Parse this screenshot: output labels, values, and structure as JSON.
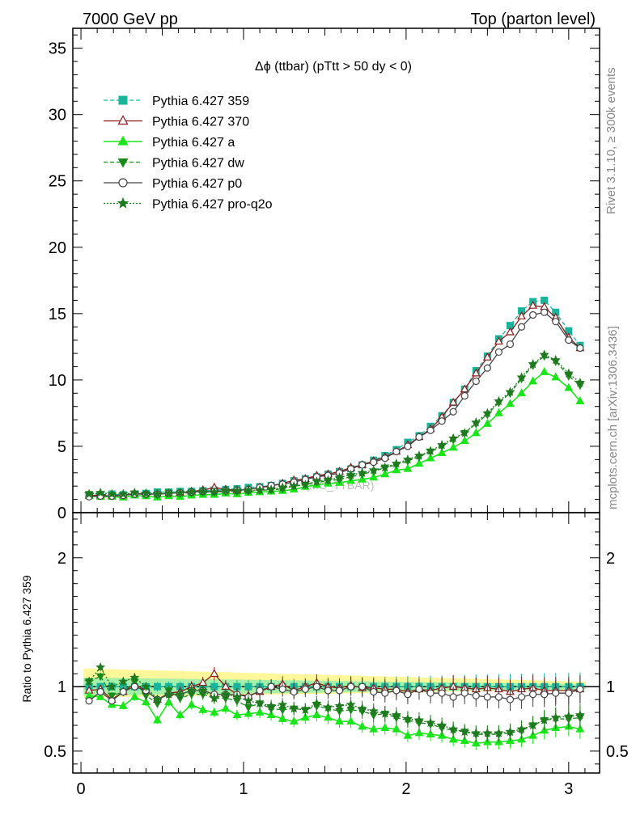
{
  "header": {
    "left": "7000 GeV pp",
    "right": "Top (parton level)"
  },
  "side": {
    "rivet": "Rivet 3.1.10, ≥ 300k events",
    "mcplots": "mcplots.cern.ch [arXiv:1306.3436]"
  },
  "title": "Δϕ (ttbar) (pTtt > 50 dy < 0)",
  "ratio_ylabel": "Ratio to Pythia 6.427 359",
  "watermark": "(MC_TTBAR)",
  "colors": {
    "s359": "#19b49a",
    "s370": "#8b1a1a",
    "a": "#19e619",
    "dw": "#1a8a1a",
    "p0": "#444444",
    "proq2o": "#1f7a1f"
  },
  "legend": [
    {
      "key": "s359",
      "label": "Pythia 6.427 359"
    },
    {
      "key": "s370",
      "label": "Pythia 6.427 370"
    },
    {
      "key": "a",
      "label": "Pythia 6.427 a"
    },
    {
      "key": "dw",
      "label": "Pythia 6.427 dw"
    },
    {
      "key": "p0",
      "label": "Pythia 6.427 p0"
    },
    {
      "key": "proq2o",
      "label": "Pythia 6.427 pro-q2o"
    }
  ],
  "chart_data": [
    {
      "type": "line",
      "panel": "main",
      "xlim": [
        -0.05,
        3.19
      ],
      "ylim": [
        0,
        36.5
      ],
      "yticks": [
        0,
        5,
        10,
        15,
        20,
        25,
        30,
        35
      ],
      "xticks": [
        0,
        1,
        2,
        3
      ],
      "x": [
        0.05,
        0.12,
        0.19,
        0.26,
        0.33,
        0.4,
        0.47,
        0.54,
        0.61,
        0.68,
        0.75,
        0.82,
        0.89,
        0.96,
        1.03,
        1.1,
        1.17,
        1.24,
        1.31,
        1.38,
        1.45,
        1.52,
        1.59,
        1.66,
        1.73,
        1.8,
        1.87,
        1.94,
        2.01,
        2.08,
        2.15,
        2.22,
        2.29,
        2.36,
        2.43,
        2.5,
        2.57,
        2.64,
        2.71,
        2.78,
        2.85,
        2.92,
        3.0,
        3.07
      ],
      "series": [
        {
          "name": "Pythia 6.427 359",
          "key": "s359",
          "values": [
            1.35,
            1.3,
            1.4,
            1.35,
            1.4,
            1.45,
            1.55,
            1.55,
            1.6,
            1.6,
            1.65,
            1.7,
            1.75,
            1.8,
            1.9,
            1.95,
            2.05,
            2.2,
            2.4,
            2.55,
            2.7,
            2.9,
            3.1,
            3.3,
            3.6,
            3.95,
            4.3,
            4.75,
            5.3,
            5.8,
            6.5,
            7.3,
            8.3,
            9.3,
            10.7,
            11.8,
            13.1,
            14.1,
            15.2,
            15.9,
            16.0,
            15.1,
            13.7,
            12.6
          ]
        },
        {
          "name": "Pythia 6.427 370",
          "key": "s370",
          "values": [
            1.3,
            1.3,
            1.25,
            1.3,
            1.45,
            1.4,
            1.4,
            1.45,
            1.5,
            1.6,
            1.7,
            1.9,
            1.75,
            1.7,
            1.75,
            1.9,
            2.0,
            2.2,
            2.45,
            2.55,
            2.8,
            2.9,
            3.1,
            3.4,
            3.6,
            3.9,
            4.2,
            4.6,
            5.1,
            5.7,
            6.3,
            7.2,
            8.3,
            9.3,
            10.5,
            11.7,
            12.9,
            13.6,
            14.8,
            15.6,
            15.5,
            14.7,
            13.2,
            12.4
          ]
        },
        {
          "name": "Pythia 6.427 a",
          "key": "a",
          "values": [
            1.25,
            1.2,
            1.2,
            1.15,
            1.3,
            1.25,
            1.15,
            1.25,
            1.2,
            1.3,
            1.35,
            1.35,
            1.45,
            1.4,
            1.5,
            1.55,
            1.6,
            1.65,
            1.75,
            1.95,
            2.1,
            2.2,
            2.25,
            2.4,
            2.5,
            2.65,
            2.9,
            3.2,
            3.3,
            3.7,
            4.1,
            4.5,
            4.9,
            5.4,
            6.0,
            6.7,
            7.5,
            8.2,
            9.0,
            9.9,
            10.6,
            10.2,
            9.4,
            8.4
          ]
        },
        {
          "name": "Pythia 6.427 dw",
          "key": "dw",
          "values": [
            1.4,
            1.4,
            1.3,
            1.3,
            1.45,
            1.35,
            1.35,
            1.5,
            1.45,
            1.5,
            1.55,
            1.55,
            1.6,
            1.6,
            1.6,
            1.7,
            1.7,
            1.8,
            2.0,
            2.1,
            2.3,
            2.4,
            2.5,
            2.7,
            2.9,
            3.1,
            3.4,
            3.6,
            3.9,
            4.2,
            4.6,
            5.0,
            5.5,
            6.0,
            6.7,
            7.4,
            8.3,
            9.0,
            10.1,
            11.1,
            11.8,
            11.4,
            10.3,
            9.6
          ]
        },
        {
          "name": "Pythia 6.427 p0",
          "key": "p0",
          "values": [
            1.2,
            1.25,
            1.25,
            1.3,
            1.4,
            1.4,
            1.4,
            1.45,
            1.5,
            1.55,
            1.6,
            1.6,
            1.65,
            1.7,
            1.75,
            1.9,
            2.05,
            2.15,
            2.3,
            2.5,
            2.7,
            2.8,
            3.0,
            3.3,
            3.6,
            3.8,
            4.1,
            4.6,
            5.0,
            5.7,
            6.2,
            6.9,
            7.6,
            8.8,
            9.9,
            10.9,
            12.1,
            12.7,
            14.0,
            14.9,
            15.1,
            14.4,
            13.0,
            12.4
          ]
        },
        {
          "name": "Pythia 6.427 pro-q2o",
          "key": "proq2o",
          "values": [
            1.4,
            1.5,
            1.4,
            1.4,
            1.5,
            1.45,
            1.4,
            1.45,
            1.5,
            1.55,
            1.6,
            1.55,
            1.65,
            1.65,
            1.7,
            1.7,
            1.75,
            1.9,
            2.0,
            2.1,
            2.35,
            2.45,
            2.65,
            2.85,
            3.0,
            3.2,
            3.4,
            3.7,
            4.0,
            4.3,
            4.65,
            5.1,
            5.6,
            6.0,
            6.8,
            7.5,
            8.4,
            9.1,
            10.2,
            11.2,
            11.9,
            11.5,
            10.5,
            9.8
          ]
        }
      ]
    },
    {
      "type": "line",
      "panel": "ratio",
      "xlim": [
        -0.05,
        3.19
      ],
      "ylim": [
        0.33,
        2.35
      ],
      "yticks": [
        0.5,
        1,
        2
      ],
      "xticks": [
        0,
        1,
        2,
        3
      ],
      "reference": 1,
      "series": [
        {
          "name": "Pythia 6.427 370",
          "key": "s370",
          "values": [
            0.97,
            0.98,
            0.9,
            0.96,
            1.02,
            0.97,
            0.9,
            0.95,
            0.96,
            1.0,
            1.03,
            1.1,
            1.0,
            0.94,
            0.93,
            0.96,
            1.0,
            1.02,
            0.97,
            1.0,
            1.03,
            1.0,
            0.99,
            1.01,
            0.99,
            0.99,
            0.98,
            0.98,
            0.96,
            0.98,
            0.97,
            0.99,
            1.0,
            0.99,
            0.98,
            0.99,
            0.98,
            0.96,
            0.98,
            0.99,
            0.97,
            0.97,
            0.97,
            0.98
          ]
        },
        {
          "name": "Pythia 6.427 a",
          "key": "a",
          "values": [
            0.93,
            0.92,
            0.86,
            0.85,
            0.92,
            0.88,
            0.74,
            0.88,
            0.78,
            0.86,
            0.82,
            0.8,
            0.83,
            0.78,
            0.79,
            0.8,
            0.78,
            0.75,
            0.73,
            0.76,
            0.78,
            0.76,
            0.73,
            0.73,
            0.69,
            0.67,
            0.68,
            0.67,
            0.62,
            0.64,
            0.63,
            0.62,
            0.59,
            0.58,
            0.56,
            0.57,
            0.57,
            0.58,
            0.59,
            0.62,
            0.66,
            0.68,
            0.69,
            0.67
          ]
        },
        {
          "name": "Pythia 6.427 dw",
          "key": "dw",
          "values": [
            1.04,
            1.08,
            0.93,
            0.96,
            1.04,
            0.93,
            0.87,
            0.97,
            0.91,
            0.94,
            0.94,
            0.91,
            0.91,
            0.89,
            0.84,
            0.87,
            0.83,
            0.82,
            0.83,
            0.82,
            0.85,
            0.83,
            0.81,
            0.82,
            0.81,
            0.78,
            0.79,
            0.76,
            0.74,
            0.72,
            0.71,
            0.68,
            0.66,
            0.65,
            0.63,
            0.63,
            0.63,
            0.64,
            0.66,
            0.7,
            0.74,
            0.75,
            0.75,
            0.76
          ]
        },
        {
          "name": "Pythia 6.427 p0",
          "key": "p0",
          "values": [
            0.89,
            0.96,
            0.89,
            0.96,
            1.0,
            0.97,
            0.9,
            0.94,
            0.94,
            0.97,
            0.97,
            0.94,
            0.94,
            0.94,
            0.92,
            0.97,
            1.0,
            0.98,
            0.96,
            0.98,
            1.0,
            0.97,
            0.97,
            1.0,
            1.0,
            0.96,
            0.95,
            0.97,
            0.94,
            0.98,
            0.95,
            0.95,
            0.92,
            0.95,
            0.93,
            0.92,
            0.92,
            0.9,
            0.92,
            0.94,
            0.94,
            0.95,
            0.95,
            0.98
          ]
        },
        {
          "name": "Pythia 6.427 pro-q2o",
          "key": "proq2o",
          "values": [
            1.04,
            1.15,
            1.0,
            1.04,
            1.07,
            1.0,
            0.9,
            0.94,
            0.94,
            0.97,
            0.97,
            0.91,
            0.94,
            0.92,
            0.89,
            0.87,
            0.85,
            0.86,
            0.83,
            0.82,
            0.87,
            0.84,
            0.85,
            0.86,
            0.83,
            0.81,
            0.79,
            0.78,
            0.75,
            0.74,
            0.72,
            0.7,
            0.67,
            0.65,
            0.64,
            0.64,
            0.64,
            0.65,
            0.67,
            0.7,
            0.74,
            0.76,
            0.77,
            0.78
          ]
        }
      ]
    }
  ]
}
